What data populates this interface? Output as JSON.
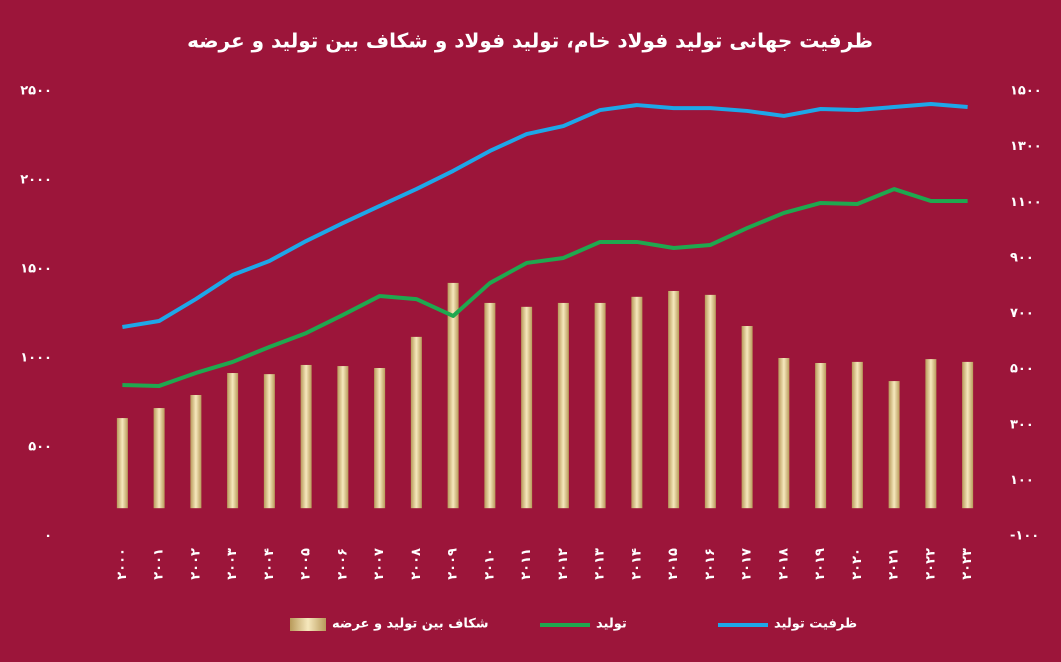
{
  "chart_data": {
    "type": "combo",
    "title": "ظرفیت جهانی تولید فولاد خام، تولید فولاد و شکاف بین تولید و عرضه",
    "categories": [
      "۲۰۰۰",
      "۲۰۰۱",
      "۲۰۰۲",
      "۲۰۰۳",
      "۲۰۰۴",
      "۲۰۰۵",
      "۲۰۰۶",
      "۲۰۰۷",
      "۲۰۰۸",
      "۲۰۰۹",
      "۲۰۱۰",
      "۲۰۱۱",
      "۲۰۱۲",
      "۲۰۱۳",
      "۲۰۱۴",
      "۲۰۱۵",
      "۲۰۱۶",
      "۲۰۱۷",
      "۲۰۱۸",
      "۲۰۱۹",
      "۲۰۲۰",
      "۲۰۲۱",
      "۲۰۲۲",
      "۲۰۲۳"
    ],
    "series": [
      {
        "name": "شکاف بین تولید و عرضه",
        "type": "bar",
        "axis": "y2",
        "color": "#e8d49a",
        "values": [
          324,
          360,
          407,
          486,
          482,
          515,
          511,
          504,
          616,
          810,
          738,
          724,
          738,
          738,
          760,
          781,
          767,
          655,
          540,
          522,
          526,
          457,
          536,
          526
        ]
      },
      {
        "name": "تولید",
        "type": "line",
        "color": "#1fa84f",
        "values": [
          848,
          843,
          916,
          978,
          1062,
          1140,
          1242,
          1348,
          1331,
          1236,
          1421,
          1534,
          1562,
          1652,
          1652,
          1618,
          1635,
          1730,
          1815,
          1871,
          1865,
          1949,
          1882,
          1882
        ]
      },
      {
        "name": "ظرفیت تولید",
        "type": "line",
        "color": "#1ea7e8",
        "values": [
          1174,
          1208,
          1331,
          1466,
          1545,
          1657,
          1758,
          1854,
          1949,
          2051,
          2163,
          2258,
          2303,
          2393,
          2421,
          2404,
          2404,
          2388,
          2360,
          2399,
          2393,
          2410,
          2427,
          2410
        ]
      }
    ],
    "ylim": [
      0,
      2500
    ],
    "yticks": [
      {
        "value": 0,
        "label": "۰"
      },
      {
        "value": 500,
        "label": "۵۰۰"
      },
      {
        "value": 1000,
        "label": "۱۰۰۰"
      },
      {
        "value": 1500,
        "label": "۱۵۰۰"
      },
      {
        "value": 2000,
        "label": "۲۰۰۰"
      },
      {
        "value": 2500,
        "label": "۲۵۰۰"
      }
    ],
    "y2lim": [
      -100,
      1500
    ],
    "y2ticks": [
      {
        "value": -100,
        "label": "-۱۰۰"
      },
      {
        "value": 100,
        "label": "۱۰۰"
      },
      {
        "value": 300,
        "label": "۳۰۰"
      },
      {
        "value": 500,
        "label": "۵۰۰"
      },
      {
        "value": 700,
        "label": "۷۰۰"
      },
      {
        "value": 900,
        "label": "۹۰۰"
      },
      {
        "value": 1100,
        "label": "۱۱۰۰"
      },
      {
        "value": 1300,
        "label": "۱۳۰۰"
      },
      {
        "value": 1500,
        "label": "۱۵۰۰"
      }
    ],
    "grid": false
  }
}
